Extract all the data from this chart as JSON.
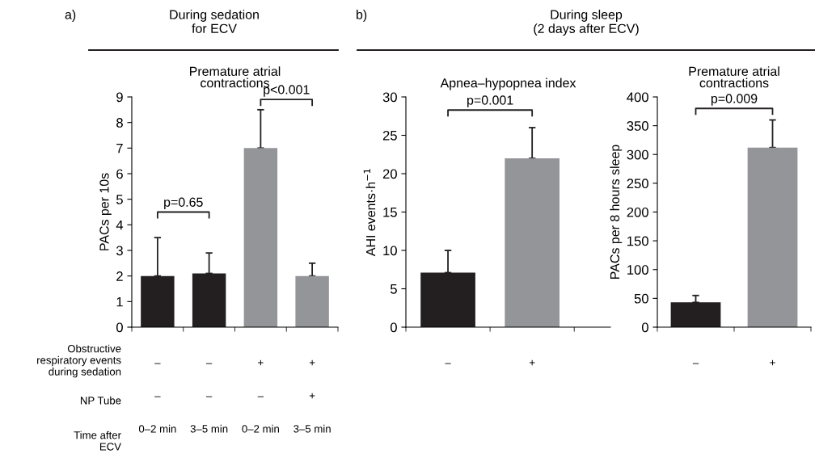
{
  "chart_data": [
    {
      "type": "bar",
      "title": "During sedation\nfor ECV",
      "subtitle": "Premature atrial\ncontractions",
      "ylabel": "PACs per 10s",
      "categories": [
        "–\n–\n0–2 min",
        "–\n–\n3–5 min",
        "+\n–\n0–2 min",
        "+\n+\n3–5 min"
      ],
      "values": [
        2,
        2.1,
        7,
        2
      ],
      "colors": [
        "#231f20",
        "#231f20",
        "#939598",
        "#939598"
      ],
      "errors": [
        [
          2,
          3.5
        ],
        [
          2.1,
          2.9
        ],
        [
          7,
          8.5
        ],
        [
          2,
          2.5
        ]
      ],
      "ylim": [
        0,
        9
      ],
      "yticks": [
        0,
        1,
        2,
        3,
        4,
        5,
        6,
        7,
        8,
        9
      ],
      "annotations": [
        "a)",
        "Obstructive\nrespiratory events\nduring sedation",
        "NP Tube",
        "Time after\nECV",
        "p=0.65",
        "p<0.001"
      ]
    },
    {
      "type": "bar",
      "title": "During sleep\n(2 days after ECV)",
      "subtitle": "Apnea–hypopnea index",
      "ylabel": "AHI events·h$^{−1}$",
      "categories": [
        "–",
        "+"
      ],
      "values": [
        7.1,
        22
      ],
      "colors": [
        "#231f20",
        "#939598"
      ],
      "errors": [
        [
          7.1,
          10
        ],
        [
          22,
          26
        ]
      ],
      "ylim": [
        0,
        30
      ],
      "yticks": [
        0,
        5,
        10,
        15,
        20,
        25,
        30
      ],
      "annotations": [
        "b)",
        "p=0.001"
      ]
    },
    {
      "type": "bar",
      "subtitle": "Premature atrial\ncontractions",
      "ylabel": "PACs per 8 hours sleep",
      "categories": [
        "–",
        "+"
      ],
      "values": [
        43,
        312
      ],
      "colors": [
        "#231f20",
        "#939598"
      ],
      "errors": [
        [
          43,
          55
        ],
        [
          312,
          360
        ]
      ],
      "ylim": [
        0,
        400
      ],
      "yticks": [
        0,
        50,
        100,
        150,
        200,
        250,
        300,
        350,
        400
      ],
      "annotations": [
        "p=0.009"
      ]
    }
  ]
}
